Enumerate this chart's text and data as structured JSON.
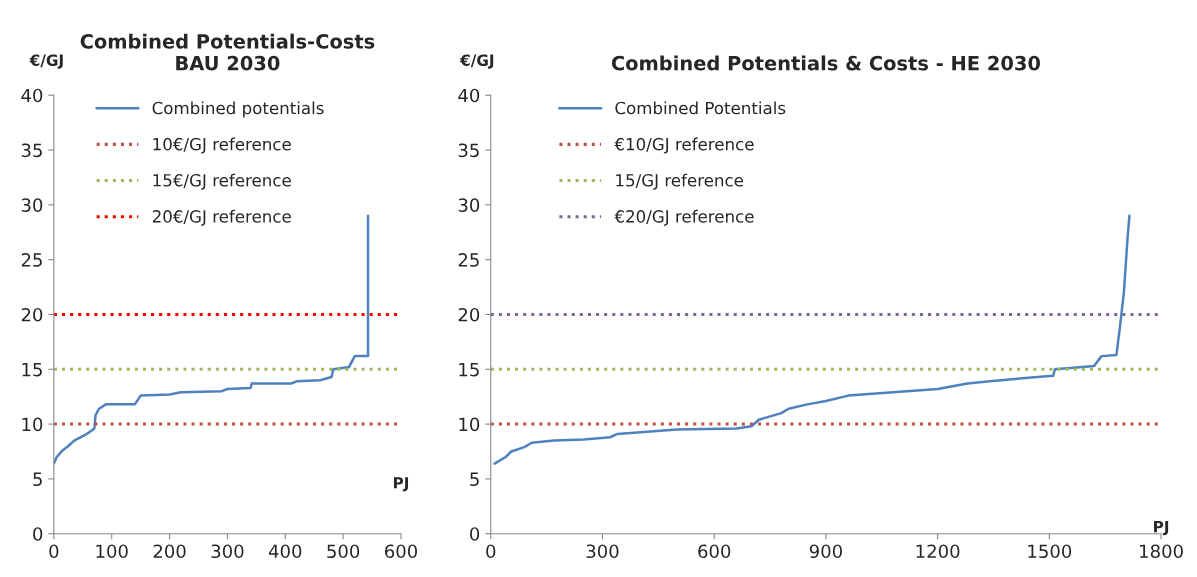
{
  "chart_data": [
    {
      "type": "line",
      "title": "Combined Potentials-Costs\nBAU 2030",
      "xlabel": "PJ",
      "ylabel": "€/GJ",
      "xlim": [
        0,
        600
      ],
      "ylim": [
        0,
        40
      ],
      "xticks": [
        0,
        100,
        200,
        300,
        400,
        500,
        600
      ],
      "yticks": [
        0,
        5,
        10,
        15,
        20,
        25,
        30,
        35,
        40
      ],
      "grid": false,
      "legend": "top left",
      "series": [
        {
          "name": "Combined potentials",
          "color": "#4f81bd",
          "line_style": "solid",
          "x": [
            0,
            5,
            15,
            25,
            35,
            50,
            60,
            70,
            72,
            78,
            90,
            140,
            150,
            200,
            220,
            290,
            300,
            340,
            342,
            410,
            420,
            460,
            480,
            483,
            510,
            520,
            543,
            543
          ],
          "values": [
            6.4,
            7,
            7.6,
            8,
            8.5,
            8.9,
            9.2,
            9.6,
            10.8,
            11.4,
            11.8,
            11.8,
            12.6,
            12.7,
            12.9,
            13,
            13.2,
            13.3,
            13.7,
            13.7,
            13.9,
            14,
            14.3,
            15,
            15.2,
            16.2,
            16.2,
            29
          ]
        },
        {
          "name": "10€/GJ reference",
          "color": "#c0504d",
          "line_style": "dotted",
          "x": [
            0,
            600
          ],
          "values": [
            10,
            10
          ]
        },
        {
          "name": "15€/GJ reference",
          "color": "#9bbb59",
          "line_style": "dotted",
          "x": [
            0,
            600
          ],
          "values": [
            15,
            15
          ]
        },
        {
          "name": "20€/GJ reference",
          "color": "#ff0000",
          "line_style": "dotted",
          "x": [
            0,
            600
          ],
          "values": [
            20,
            20
          ]
        }
      ]
    },
    {
      "type": "line",
      "title": "Combined Potentials & Costs - HE 2030",
      "xlabel": "PJ",
      "ylabel": "€/GJ",
      "xlim": [
        0,
        1800
      ],
      "ylim": [
        0,
        40
      ],
      "xticks": [
        0,
        300,
        600,
        900,
        1200,
        1500,
        1800
      ],
      "yticks": [
        0,
        5,
        10,
        15,
        20,
        25,
        30,
        35,
        40
      ],
      "grid": false,
      "legend": "top left",
      "series": [
        {
          "name": "Combined Potentials",
          "color": "#4f81bd",
          "line_style": "solid",
          "x": [
            10,
            40,
            55,
            90,
            110,
            170,
            250,
            320,
            340,
            420,
            500,
            660,
            700,
            720,
            780,
            800,
            850,
            900,
            960,
            1080,
            1200,
            1280,
            1340,
            1400,
            1510,
            1515,
            1620,
            1640,
            1680,
            1690,
            1700,
            1710,
            1715
          ],
          "values": [
            6.4,
            7,
            7.5,
            7.9,
            8.3,
            8.5,
            8.6,
            8.8,
            9.1,
            9.3,
            9.5,
            9.6,
            9.8,
            10.4,
            11,
            11.4,
            11.8,
            12.1,
            12.6,
            12.9,
            13.2,
            13.7,
            13.9,
            14.1,
            14.4,
            15,
            15.3,
            16.2,
            16.3,
            19,
            22,
            27,
            29
          ]
        },
        {
          "name": "€10/GJ reference",
          "color": "#c0504d",
          "line_style": "dotted",
          "x": [
            0,
            1800
          ],
          "values": [
            10,
            10
          ]
        },
        {
          "name": "15/GJ reference",
          "color": "#9bbb59",
          "line_style": "dotted",
          "x": [
            0,
            1800
          ],
          "values": [
            15,
            15
          ]
        },
        {
          "name": "€20/GJ reference",
          "color": "#8064a2",
          "line_style": "dotted",
          "x": [
            0,
            1800
          ],
          "values": [
            20,
            20
          ]
        }
      ]
    }
  ]
}
